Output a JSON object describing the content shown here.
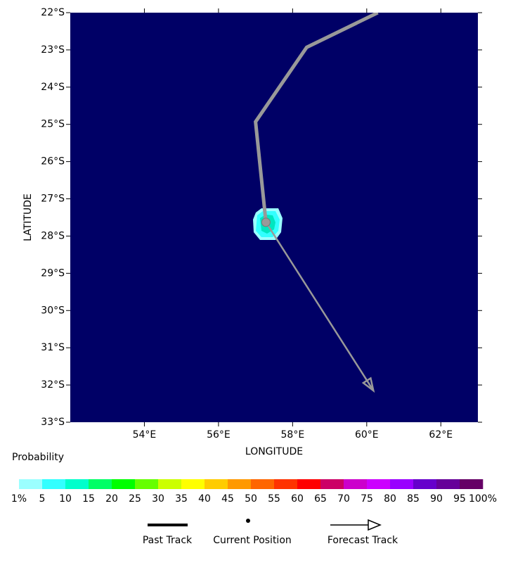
{
  "chart_data": {
    "type": "track",
    "xlabel": "LONGITUDE",
    "ylabel": "LATITUDE",
    "xlim": [
      52,
      63
    ],
    "ylim": [
      -33,
      -22
    ],
    "xticks": [
      {
        "value": 54,
        "label": "54°E"
      },
      {
        "value": 56,
        "label": "56°E"
      },
      {
        "value": 58,
        "label": "58°E"
      },
      {
        "value": 60,
        "label": "60°E"
      },
      {
        "value": 62,
        "label": "62°E"
      }
    ],
    "yticks": [
      {
        "value": -22,
        "label": "22°S"
      },
      {
        "value": -23,
        "label": "23°S"
      },
      {
        "value": -24,
        "label": "24°S"
      },
      {
        "value": -25,
        "label": "25°S"
      },
      {
        "value": -26,
        "label": "26°S"
      },
      {
        "value": -27,
        "label": "27°S"
      },
      {
        "value": -28,
        "label": "28°S"
      },
      {
        "value": -29,
        "label": "29°S"
      },
      {
        "value": -30,
        "label": "30°S"
      },
      {
        "value": -31,
        "label": "31°S"
      },
      {
        "value": -32,
        "label": "32°S"
      },
      {
        "value": -33,
        "label": "33°S"
      }
    ],
    "series": [
      {
        "name": "Past Track",
        "color": "#999999",
        "x": [
          60.3,
          58.38,
          57.0,
          57.28
        ],
        "y": [
          -22.0,
          -22.93,
          -24.93,
          -27.63
        ]
      },
      {
        "name": "Forecast Track",
        "color": "#999999",
        "x": [
          57.28,
          60.18
        ],
        "y": [
          -27.63,
          -32.15
        ]
      }
    ],
    "current_position": {
      "name": "Current Position",
      "x": 57.28,
      "y": -27.63
    },
    "colorbar": {
      "title": "Probability",
      "colors": [
        "#9bffff",
        "#33ffff",
        "#00ffcc",
        "#00ff66",
        "#00ff00",
        "#66ff00",
        "#ccff00",
        "#ffff00",
        "#ffcc00",
        "#ff9900",
        "#ff6600",
        "#ff3300",
        "#ff0000",
        "#cc0066",
        "#cc00cc",
        "#cc00ff",
        "#9900ff",
        "#6600cc",
        "#660099",
        "#660066"
      ],
      "ticks": [
        {
          "value": 1,
          "label": "1%"
        },
        5,
        10,
        15,
        20,
        25,
        30,
        35,
        40,
        45,
        50,
        55,
        60,
        65,
        70,
        75,
        80,
        85,
        90,
        95,
        {
          "value": 100,
          "label": "100%"
        }
      ]
    }
  }
}
